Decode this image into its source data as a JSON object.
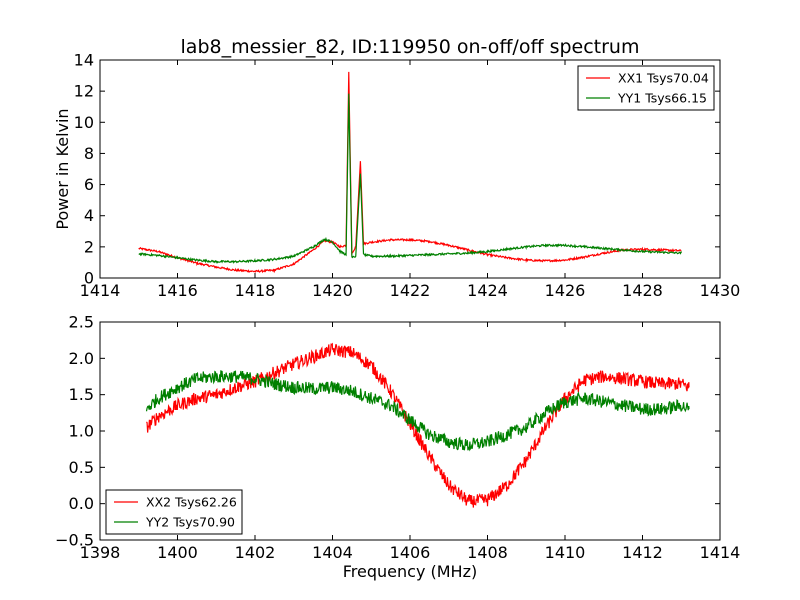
{
  "figure_title": "lab8_messier_82, ID:119950 on-off/off spectrum",
  "chart_data": [
    {
      "type": "line",
      "title": "lab8_messier_82, ID:119950 on-off/off spectrum",
      "xlabel": "",
      "ylabel": "Power in Kelvin",
      "xlim": [
        1414,
        1430
      ],
      "ylim": [
        0,
        14
      ],
      "xticks": [
        1414,
        1416,
        1418,
        1420,
        1422,
        1424,
        1426,
        1428,
        1430
      ],
      "yticks": [
        0,
        2,
        4,
        6,
        8,
        10,
        12,
        14
      ],
      "grid": false,
      "legend_position": "top-right",
      "series": [
        {
          "name": "XX1 Tsys70.04",
          "color": "#ff0000",
          "points": [
            [
              1415.0,
              1.9
            ],
            [
              1415.5,
              1.7
            ],
            [
              1416.0,
              1.3
            ],
            [
              1416.5,
              0.95
            ],
            [
              1417.0,
              0.7
            ],
            [
              1417.5,
              0.5
            ],
            [
              1418.0,
              0.42
            ],
            [
              1418.5,
              0.5
            ],
            [
              1419.0,
              0.9
            ],
            [
              1419.5,
              1.8
            ],
            [
              1419.8,
              2.4
            ],
            [
              1420.0,
              2.3
            ],
            [
              1420.2,
              2.0
            ],
            [
              1420.35,
              2.1
            ],
            [
              1420.42,
              13.2
            ],
            [
              1420.5,
              1.6
            ],
            [
              1420.6,
              2.0
            ],
            [
              1420.72,
              7.5
            ],
            [
              1420.8,
              2.2
            ],
            [
              1421.0,
              2.3
            ],
            [
              1421.5,
              2.45
            ],
            [
              1422.0,
              2.45
            ],
            [
              1422.5,
              2.35
            ],
            [
              1423.0,
              2.1
            ],
            [
              1423.5,
              1.8
            ],
            [
              1424.0,
              1.5
            ],
            [
              1424.5,
              1.3
            ],
            [
              1425.0,
              1.15
            ],
            [
              1425.5,
              1.1
            ],
            [
              1426.0,
              1.15
            ],
            [
              1426.5,
              1.35
            ],
            [
              1427.0,
              1.6
            ],
            [
              1427.5,
              1.8
            ],
            [
              1428.0,
              1.85
            ],
            [
              1428.5,
              1.8
            ],
            [
              1429.0,
              1.75
            ]
          ]
        },
        {
          "name": "YY1 Tsys66.15",
          "color": "#008000",
          "points": [
            [
              1415.0,
              1.55
            ],
            [
              1415.5,
              1.45
            ],
            [
              1416.0,
              1.3
            ],
            [
              1416.5,
              1.15
            ],
            [
              1417.0,
              1.05
            ],
            [
              1417.5,
              1.05
            ],
            [
              1418.0,
              1.1
            ],
            [
              1418.5,
              1.2
            ],
            [
              1419.0,
              1.4
            ],
            [
              1419.5,
              2.0
            ],
            [
              1419.8,
              2.5
            ],
            [
              1420.0,
              2.3
            ],
            [
              1420.2,
              1.7
            ],
            [
              1420.35,
              1.5
            ],
            [
              1420.42,
              11.8
            ],
            [
              1420.5,
              1.3
            ],
            [
              1420.6,
              1.4
            ],
            [
              1420.72,
              6.7
            ],
            [
              1420.8,
              1.5
            ],
            [
              1421.0,
              1.4
            ],
            [
              1421.5,
              1.4
            ],
            [
              1422.0,
              1.45
            ],
            [
              1422.5,
              1.5
            ],
            [
              1423.0,
              1.55
            ],
            [
              1423.5,
              1.6
            ],
            [
              1424.0,
              1.7
            ],
            [
              1424.5,
              1.85
            ],
            [
              1425.0,
              2.0
            ],
            [
              1425.5,
              2.1
            ],
            [
              1426.0,
              2.1
            ],
            [
              1426.5,
              2.0
            ],
            [
              1427.0,
              1.9
            ],
            [
              1427.5,
              1.8
            ],
            [
              1428.0,
              1.7
            ],
            [
              1428.5,
              1.65
            ],
            [
              1429.0,
              1.6
            ]
          ]
        }
      ]
    },
    {
      "type": "line",
      "title": "",
      "xlabel": "Frequency (MHz)",
      "ylabel": "",
      "xlim": [
        1398,
        1414
      ],
      "ylim": [
        -0.5,
        2.5
      ],
      "xticks": [
        1398,
        1400,
        1402,
        1404,
        1406,
        1408,
        1410,
        1412,
        1414
      ],
      "yticks": [
        -0.5,
        0.0,
        0.5,
        1.0,
        1.5,
        2.0,
        2.5
      ],
      "grid": false,
      "legend_position": "bottom-left",
      "series": [
        {
          "name": "XX2 Tsys62.26",
          "color": "#ff0000",
          "points": [
            [
              1399.2,
              1.05
            ],
            [
              1399.5,
              1.2
            ],
            [
              1400.0,
              1.35
            ],
            [
              1400.5,
              1.45
            ],
            [
              1401.0,
              1.5
            ],
            [
              1401.5,
              1.6
            ],
            [
              1402.0,
              1.68
            ],
            [
              1402.5,
              1.8
            ],
            [
              1403.0,
              1.92
            ],
            [
              1403.5,
              2.02
            ],
            [
              1404.0,
              2.12
            ],
            [
              1404.5,
              2.08
            ],
            [
              1405.0,
              1.9
            ],
            [
              1405.5,
              1.55
            ],
            [
              1406.0,
              1.1
            ],
            [
              1406.5,
              0.65
            ],
            [
              1407.0,
              0.25
            ],
            [
              1407.5,
              0.03
            ],
            [
              1408.0,
              0.05
            ],
            [
              1408.5,
              0.25
            ],
            [
              1409.0,
              0.6
            ],
            [
              1409.5,
              1.05
            ],
            [
              1410.0,
              1.45
            ],
            [
              1410.5,
              1.7
            ],
            [
              1411.0,
              1.75
            ],
            [
              1411.5,
              1.72
            ],
            [
              1412.0,
              1.68
            ],
            [
              1412.5,
              1.65
            ],
            [
              1413.0,
              1.65
            ],
            [
              1413.2,
              1.6
            ]
          ]
        },
        {
          "name": "YY2 Tsys70.90",
          "color": "#008000",
          "points": [
            [
              1399.2,
              1.3
            ],
            [
              1399.5,
              1.45
            ],
            [
              1400.0,
              1.6
            ],
            [
              1400.5,
              1.72
            ],
            [
              1401.0,
              1.75
            ],
            [
              1401.5,
              1.75
            ],
            [
              1402.0,
              1.72
            ],
            [
              1402.5,
              1.65
            ],
            [
              1403.0,
              1.6
            ],
            [
              1403.5,
              1.58
            ],
            [
              1404.0,
              1.6
            ],
            [
              1404.5,
              1.55
            ],
            [
              1405.0,
              1.45
            ],
            [
              1405.5,
              1.35
            ],
            [
              1406.0,
              1.15
            ],
            [
              1406.5,
              0.95
            ],
            [
              1407.0,
              0.85
            ],
            [
              1407.5,
              0.8
            ],
            [
              1408.0,
              0.85
            ],
            [
              1408.5,
              0.95
            ],
            [
              1409.0,
              1.05
            ],
            [
              1409.5,
              1.25
            ],
            [
              1410.0,
              1.4
            ],
            [
              1410.5,
              1.45
            ],
            [
              1411.0,
              1.4
            ],
            [
              1411.5,
              1.35
            ],
            [
              1412.0,
              1.3
            ],
            [
              1412.5,
              1.3
            ],
            [
              1413.0,
              1.35
            ],
            [
              1413.2,
              1.3
            ]
          ]
        }
      ]
    }
  ]
}
